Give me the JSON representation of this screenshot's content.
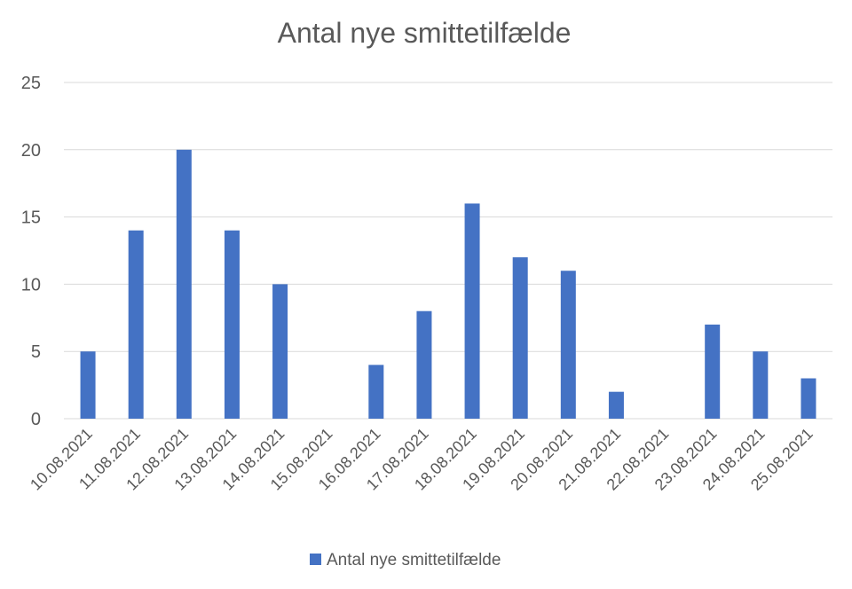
{
  "chart_data": {
    "type": "bar",
    "title": "Antal nye smittetilfælde",
    "xlabel": "",
    "ylabel": "",
    "ylim": [
      0,
      25
    ],
    "yticks": [
      "0",
      "5",
      "10",
      "15",
      "20",
      "25"
    ],
    "grid": true,
    "legend": "bottom",
    "categories": [
      "10.08.2021",
      "11.08.2021",
      "12.08.2021",
      "13.08.2021",
      "14.08.2021",
      "15.08.2021",
      "16.08.2021",
      "17.08.2021",
      "18.08.2021",
      "19.08.2021",
      "20.08.2021",
      "21.08.2021",
      "22.08.2021",
      "23.08.2021",
      "24.08.2021",
      "25.08.2021"
    ],
    "series": [
      {
        "name": "Antal nye smittetilfælde",
        "values": [
          5,
          14,
          20,
          14,
          10,
          0,
          4,
          8,
          16,
          12,
          11,
          2,
          0,
          7,
          5,
          3
        ],
        "color": "#4472c4"
      }
    ]
  }
}
